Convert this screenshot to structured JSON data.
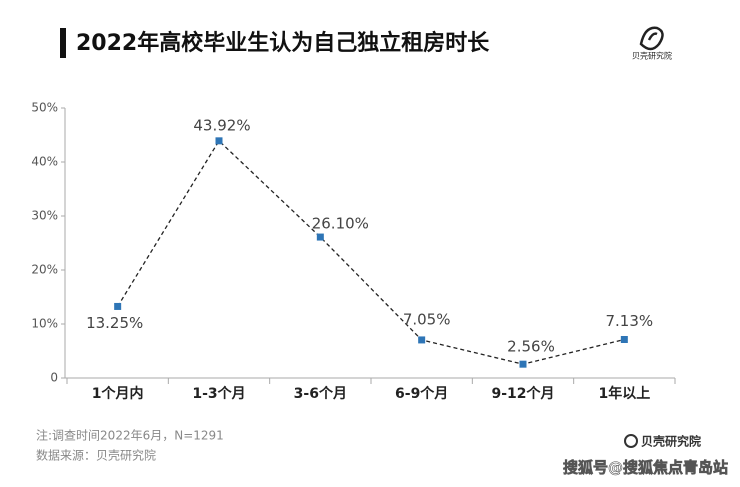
{
  "chart_data": {
    "type": "line",
    "title": "2022年高校毕业生认为自己独立租房时长",
    "brand": "贝壳研究院",
    "note": "注:调查时间2022年6月，N=1291",
    "source": "数据来源：贝壳研究院",
    "watermark": "搜狐号@搜狐焦点青岛站",
    "categories": [
      "1个月内",
      "1-3个月",
      "3-6个月",
      "6-9个月",
      "9-12个月",
      "1年以上"
    ],
    "values": [
      13.25,
      43.92,
      26.1,
      7.05,
      2.56,
      7.13
    ],
    "value_labels": [
      "13.25%",
      "43.92%",
      "26.10%",
      "7.05%",
      "2.56%",
      "7.13%"
    ],
    "color": "#2e75b6",
    "line_color": "#222222",
    "ylim": [
      0,
      50
    ],
    "yticks": [
      {
        "value": 0,
        "label": "0"
      },
      {
        "value": 10,
        "label": "10%"
      },
      {
        "value": 20,
        "label": "20%"
      },
      {
        "value": 30,
        "label": "30%"
      },
      {
        "value": 40,
        "label": "40%"
      },
      {
        "value": 50,
        "label": "50%"
      }
    ]
  }
}
